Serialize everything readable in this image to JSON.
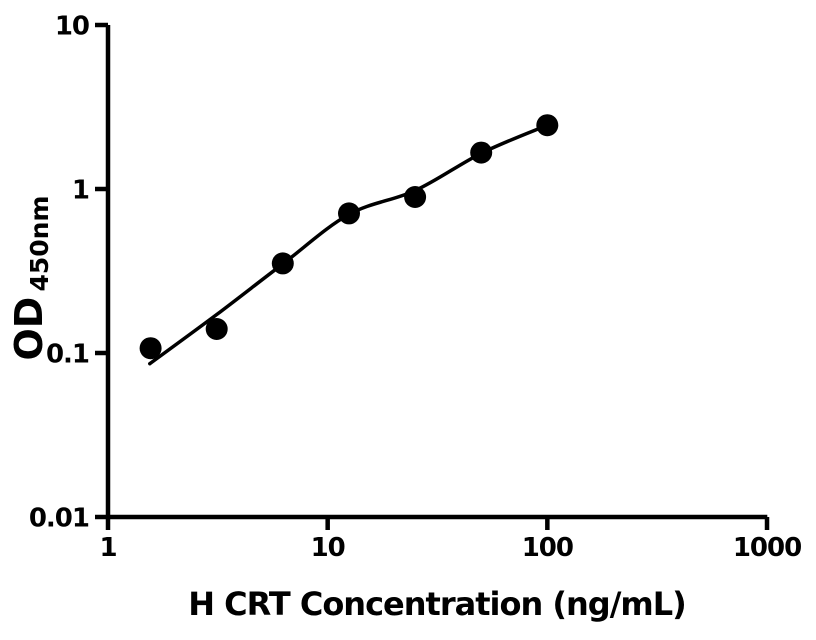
{
  "colors": {
    "ink": "#000000",
    "background": "#ffffff"
  },
  "chart_data": {
    "type": "scatter",
    "title": "",
    "xlabel": "H CRT Concentration (ng/mL)",
    "ylabel": "OD",
    "ylabel_subscript": "450nm",
    "x_scale": "log",
    "y_scale": "log",
    "xlim": [
      1,
      1000
    ],
    "ylim": [
      0.01,
      10
    ],
    "grid": false,
    "legend": null,
    "x_ticks": {
      "values": [
        1,
        10,
        100,
        1000
      ],
      "labels": [
        "1",
        "10",
        "100",
        "1000"
      ]
    },
    "y_ticks": {
      "values": [
        10,
        1,
        0.1,
        0.01
      ],
      "labels": [
        "10",
        "1",
        "0.1",
        "0.01"
      ]
    },
    "series": [
      {
        "name": "standard-curve-points",
        "marker": "filled-circle",
        "color": "#000000",
        "x": [
          1.563,
          3.125,
          6.25,
          12.5,
          25,
          50,
          100
        ],
        "y": [
          0.107,
          0.14,
          0.352,
          0.71,
          0.894,
          1.668,
          2.45
        ]
      }
    ],
    "fit_curve": {
      "name": "four-parameter-logistic-fit",
      "color": "#000000",
      "x": [
        1.55,
        3.13,
        6.26,
        12.5,
        25.1,
        50.4,
        100
      ],
      "y": [
        0.086,
        0.172,
        0.35,
        0.7,
        0.98,
        1.66,
        2.45
      ]
    }
  }
}
